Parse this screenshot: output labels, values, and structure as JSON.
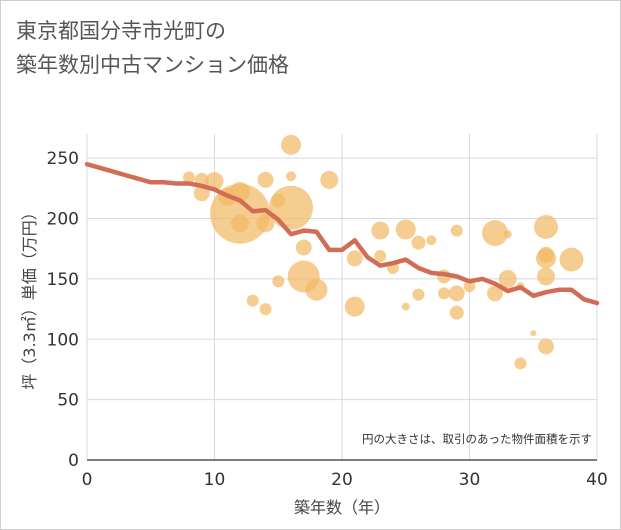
{
  "title_line1": "東京都国分寺市光町の",
  "title_line2": "築年数別中古マンション価格",
  "chart_data": {
    "type": "scatter",
    "xlabel": "築年数（年）",
    "ylabel": "坪（3.3㎡）単価（万円）",
    "xlim": [
      0,
      40
    ],
    "ylim": [
      0,
      270
    ],
    "xticks": [
      0,
      10,
      20,
      30,
      40
    ],
    "yticks": [
      0,
      50,
      100,
      150,
      200,
      250
    ],
    "grid": true,
    "note": "円の大きさは、取引のあった物件面積を示す",
    "colors": {
      "bubble": "#f2b862",
      "line": "#d26d55"
    },
    "trend_line": {
      "x": [
        0,
        1,
        2,
        3,
        4,
        5,
        6,
        7,
        8,
        9,
        10,
        11,
        12,
        13,
        14,
        15,
        16,
        17,
        18,
        19,
        20,
        21,
        22,
        23,
        24,
        25,
        26,
        27,
        28,
        29,
        30,
        31,
        32,
        33,
        34,
        35,
        36,
        37,
        38,
        39,
        40
      ],
      "y": [
        245,
        242,
        239,
        236,
        233,
        230,
        230,
        229,
        229,
        227,
        224,
        219,
        215,
        206,
        207,
        199,
        187,
        190,
        189,
        174,
        174,
        182,
        168,
        161,
        163,
        166,
        159,
        155,
        154,
        152,
        148,
        150,
        146,
        140,
        143,
        136,
        139,
        141,
        141,
        133,
        130
      ]
    },
    "bubbles": [
      {
        "x": 8,
        "y": 234,
        "r": 6
      },
      {
        "x": 9,
        "y": 232,
        "r": 7
      },
      {
        "x": 10,
        "y": 231,
        "r": 9
      },
      {
        "x": 9,
        "y": 221,
        "r": 8
      },
      {
        "x": 11,
        "y": 218,
        "r": 9
      },
      {
        "x": 12,
        "y": 222,
        "r": 10
      },
      {
        "x": 12,
        "y": 204,
        "r": 30
      },
      {
        "x": 12,
        "y": 196,
        "r": 9
      },
      {
        "x": 14,
        "y": 232,
        "r": 8
      },
      {
        "x": 14,
        "y": 196,
        "r": 9
      },
      {
        "x": 15,
        "y": 215,
        "r": 7
      },
      {
        "x": 16,
        "y": 261,
        "r": 10
      },
      {
        "x": 16,
        "y": 235,
        "r": 5
      },
      {
        "x": 16,
        "y": 209,
        "r": 22
      },
      {
        "x": 17,
        "y": 176,
        "r": 8
      },
      {
        "x": 17,
        "y": 152,
        "r": 16
      },
      {
        "x": 18,
        "y": 141,
        "r": 11
      },
      {
        "x": 19,
        "y": 232,
        "r": 9
      },
      {
        "x": 15,
        "y": 148,
        "r": 6
      },
      {
        "x": 13,
        "y": 132,
        "r": 6
      },
      {
        "x": 14,
        "y": 125,
        "r": 6
      },
      {
        "x": 21,
        "y": 167,
        "r": 8
      },
      {
        "x": 21,
        "y": 127,
        "r": 10
      },
      {
        "x": 23,
        "y": 190,
        "r": 9
      },
      {
        "x": 23,
        "y": 169,
        "r": 6
      },
      {
        "x": 24,
        "y": 159,
        "r": 6
      },
      {
        "x": 25,
        "y": 191,
        "r": 10
      },
      {
        "x": 25,
        "y": 127,
        "r": 4
      },
      {
        "x": 26,
        "y": 180,
        "r": 7
      },
      {
        "x": 26,
        "y": 137,
        "r": 6
      },
      {
        "x": 27,
        "y": 182,
        "r": 5
      },
      {
        "x": 28,
        "y": 152,
        "r": 7
      },
      {
        "x": 28,
        "y": 138,
        "r": 6
      },
      {
        "x": 29,
        "y": 190,
        "r": 6
      },
      {
        "x": 29,
        "y": 138,
        "r": 8
      },
      {
        "x": 29,
        "y": 122,
        "r": 7
      },
      {
        "x": 30,
        "y": 144,
        "r": 6
      },
      {
        "x": 32,
        "y": 188,
        "r": 13
      },
      {
        "x": 32,
        "y": 138,
        "r": 8
      },
      {
        "x": 33,
        "y": 187,
        "r": 4
      },
      {
        "x": 33,
        "y": 150,
        "r": 9
      },
      {
        "x": 34,
        "y": 144,
        "r": 4
      },
      {
        "x": 35,
        "y": 105,
        "r": 3
      },
      {
        "x": 34,
        "y": 80,
        "r": 6
      },
      {
        "x": 36,
        "y": 193,
        "r": 12
      },
      {
        "x": 36,
        "y": 170,
        "r": 8
      },
      {
        "x": 36,
        "y": 167,
        "r": 10
      },
      {
        "x": 36,
        "y": 152,
        "r": 9
      },
      {
        "x": 36,
        "y": 94,
        "r": 8
      },
      {
        "x": 38,
        "y": 166,
        "r": 12
      }
    ]
  }
}
